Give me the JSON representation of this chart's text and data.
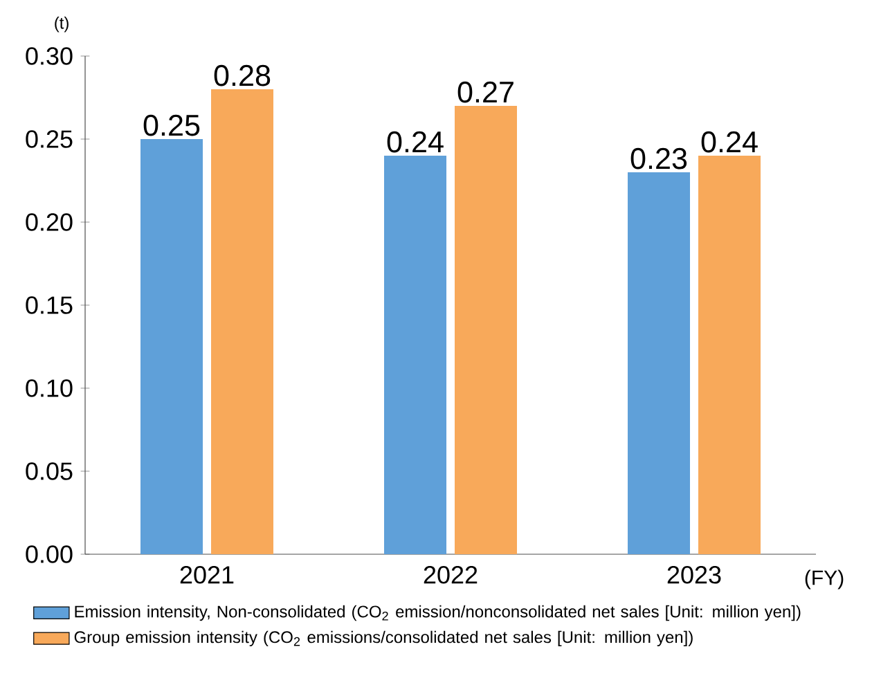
{
  "chart_data": {
    "type": "bar",
    "xlabel": "(FY)",
    "ylabel": "(t)",
    "categories": [
      "2021",
      "2022",
      "2023"
    ],
    "series": [
      {
        "name": "Emission intensity, Non-consolidated (CO$_{2}$ emission/nonconsolidated net sales [Unit: million yen])",
        "color": "#5fa0d9",
        "values": [
          0.25,
          0.24,
          0.23
        ]
      },
      {
        "name": "Group emission intensity (CO$_{2}$ emissions/consolidated net sales [Unit: million yen])",
        "color": "#f8a95a",
        "values": [
          0.28,
          0.27,
          0.24
        ]
      }
    ],
    "ylim": [
      0,
      0.3
    ],
    "yticks": [
      {
        "value": 0,
        "label": "0.00"
      },
      {
        "value": 0.05,
        "label": "0.05"
      },
      {
        "value": 0.1,
        "label": "0.10"
      },
      {
        "value": 0.15,
        "label": "0.15"
      },
      {
        "value": 0.2,
        "label": "0.20"
      },
      {
        "value": 0.25,
        "label": "0.25"
      },
      {
        "value": 0.3,
        "label": "0.30"
      }
    ],
    "data_labels": true,
    "legend": "bottom",
    "grid": false
  }
}
